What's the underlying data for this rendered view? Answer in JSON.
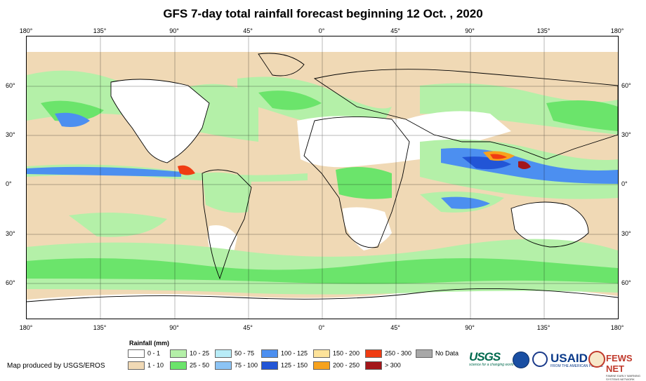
{
  "title": "GFS 7-day total rainfall forecast beginning 12 Oct. , 2020",
  "longitude_labels": [
    "180°",
    "135°",
    "90°",
    "45°",
    "0°",
    "45°",
    "90°",
    "135°",
    "180°"
  ],
  "latitude_labels": [
    "60°",
    "30°",
    "0°",
    "30°",
    "60°"
  ],
  "legend": {
    "title": "Rainfall (mm)",
    "items": [
      {
        "label": "0 - 1",
        "color": "#ffffff"
      },
      {
        "label": "1 - 10",
        "color": "#f0d9b5"
      },
      {
        "label": "10 - 25",
        "color": "#b4f0a8"
      },
      {
        "label": "25 - 50",
        "color": "#6be46b"
      },
      {
        "label": "50 - 75",
        "color": "#b8ecf7"
      },
      {
        "label": "75 - 100",
        "color": "#8cc4f5"
      },
      {
        "label": "100 - 125",
        "color": "#4c8ff0"
      },
      {
        "label": "125 - 150",
        "color": "#2255d6"
      },
      {
        "label": "150 - 200",
        "color": "#fde39a"
      },
      {
        "label": "200 - 250",
        "color": "#f7a21d"
      },
      {
        "label": "250 - 300",
        "color": "#f03c12"
      },
      {
        "label": "> 300",
        "color": "#a3161a"
      },
      {
        "label": "No Data",
        "color": "#a8a8a8"
      }
    ]
  },
  "credit": "Map produced by USGS/EROS",
  "logos": {
    "usgs": "USGS",
    "usgs_tagline": "science for a changing world",
    "usaid": "USAID",
    "usaid_tagline": "FROM THE AMERICAN PEOPLE",
    "fews": "FEWS NET",
    "fews_tagline": "FAMINE EARLY WARNING SYSTEMS NETWORK"
  }
}
